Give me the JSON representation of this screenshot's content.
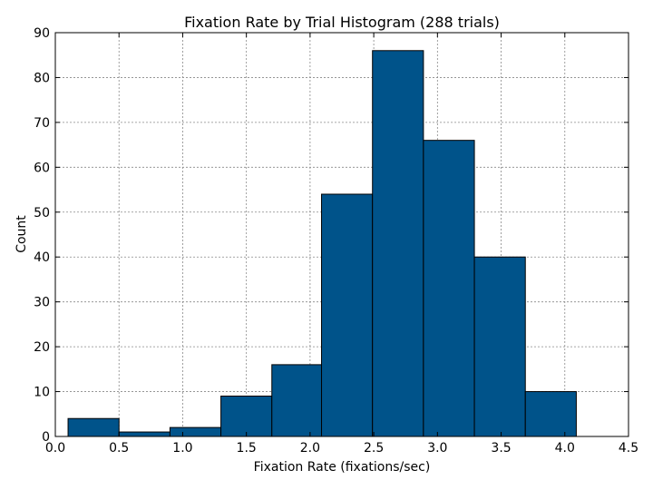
{
  "chart_data": {
    "type": "bar",
    "title": "Fixation Rate by Trial Histogram (288 trials)",
    "xlabel": "Fixation Rate (fixations/sec)",
    "ylabel": "Count",
    "xlim": [
      0.0,
      4.5
    ],
    "ylim": [
      0,
      90
    ],
    "xticks": [
      "0.0",
      "0.5",
      "1.0",
      "1.5",
      "2.0",
      "2.5",
      "3.0",
      "3.5",
      "4.0",
      "4.5"
    ],
    "yticks": [
      "0",
      "10",
      "20",
      "30",
      "40",
      "50",
      "60",
      "70",
      "80",
      "90"
    ],
    "grid": true,
    "bar_color": "#00538a",
    "bins": [
      {
        "x0": 0.1,
        "x1": 0.5,
        "count": 4
      },
      {
        "x0": 0.5,
        "x1": 0.9,
        "count": 1
      },
      {
        "x0": 0.9,
        "x1": 1.3,
        "count": 2
      },
      {
        "x0": 1.3,
        "x1": 1.7,
        "count": 9
      },
      {
        "x0": 1.7,
        "x1": 2.09,
        "count": 16
      },
      {
        "x0": 2.09,
        "x1": 2.49,
        "count": 54
      },
      {
        "x0": 2.49,
        "x1": 2.89,
        "count": 86
      },
      {
        "x0": 2.89,
        "x1": 3.29,
        "count": 66
      },
      {
        "x0": 3.29,
        "x1": 3.69,
        "count": 40
      },
      {
        "x0": 3.69,
        "x1": 4.09,
        "count": 10
      }
    ]
  }
}
